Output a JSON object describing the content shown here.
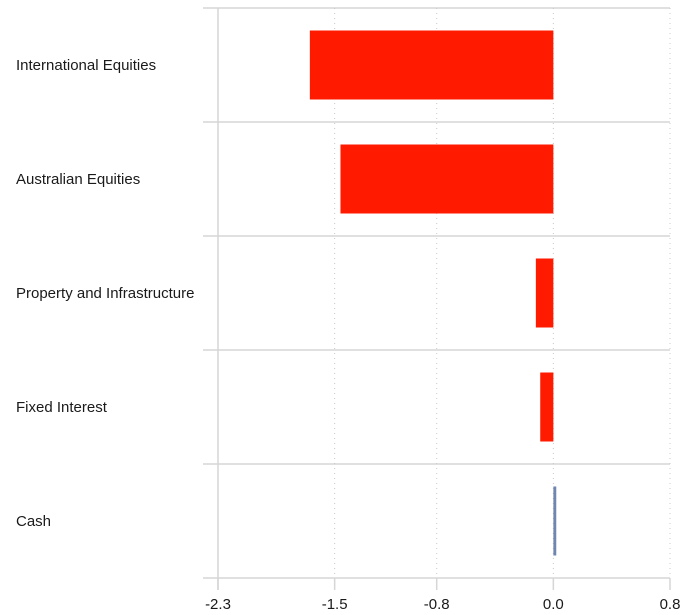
{
  "chart_data": {
    "type": "bar",
    "orientation": "horizontal",
    "categories": [
      "International Equities",
      "Australian Equities",
      "Property and Infrastructure",
      "Fixed Interest",
      "Cash"
    ],
    "values": [
      -1.67,
      -1.46,
      -0.12,
      -0.09,
      0.02
    ],
    "colors": [
      "#ff1a00",
      "#ff1a00",
      "#ff1a00",
      "#ff1a00",
      "#6f86b0"
    ],
    "xticks": [
      "-2.3",
      "-1.5",
      "-0.8",
      "0.0",
      "0.8"
    ],
    "xlim": [
      -2.3,
      0.8
    ],
    "grid": true,
    "title": "",
    "xlabel": "",
    "ylabel": ""
  }
}
